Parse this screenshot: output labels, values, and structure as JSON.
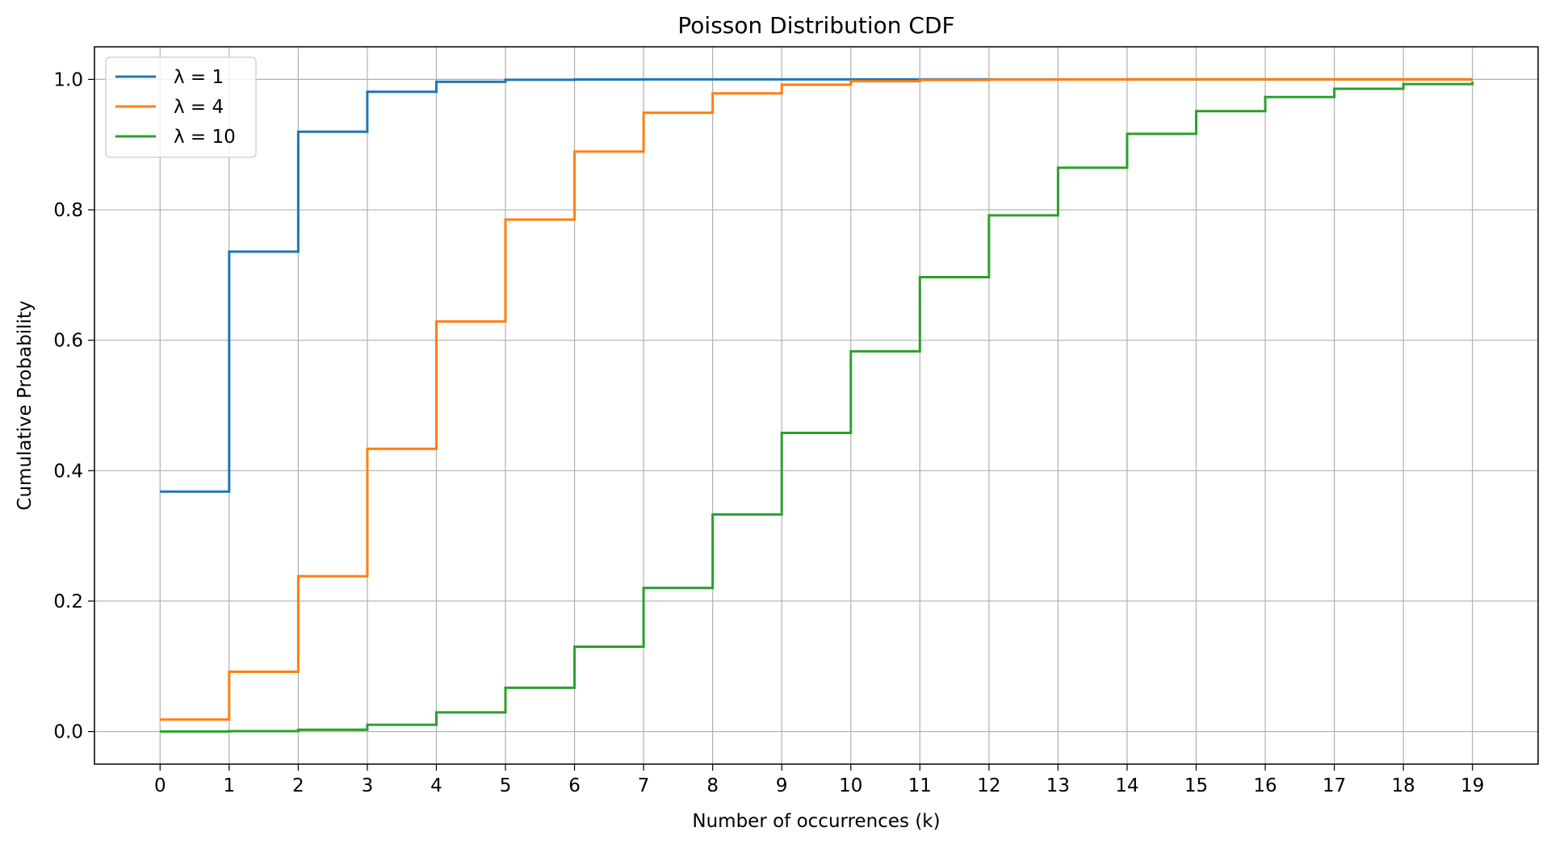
{
  "chart_data": {
    "type": "line",
    "title": "Poisson Distribution CDF",
    "xlabel": "Number of occurrences (k)",
    "ylabel": "Cumulative Probability",
    "x": [
      0,
      1,
      2,
      3,
      4,
      5,
      6,
      7,
      8,
      9,
      10,
      11,
      12,
      13,
      14,
      15,
      16,
      17,
      18,
      19
    ],
    "xticks": [
      "0",
      "1",
      "2",
      "3",
      "4",
      "5",
      "6",
      "7",
      "8",
      "9",
      "10",
      "11",
      "12",
      "13",
      "14",
      "15",
      "16",
      "17",
      "18",
      "19"
    ],
    "yticks": [
      {
        "value": 0.0,
        "label": "0.0"
      },
      {
        "value": 0.2,
        "label": "0.2"
      },
      {
        "value": 0.4,
        "label": "0.4"
      },
      {
        "value": 0.6,
        "label": "0.6"
      },
      {
        "value": 0.8,
        "label": "0.8"
      },
      {
        "value": 1.0,
        "label": "1.0"
      }
    ],
    "xlim": [
      -0.95,
      19.95
    ],
    "ylim": [
      -0.05,
      1.05
    ],
    "grid": true,
    "legend_position": "top-left",
    "step": "post",
    "series": [
      {
        "name": "λ = 1",
        "color": "#1f77b4",
        "values": [
          0.3679,
          0.7358,
          0.9197,
          0.981,
          0.9963,
          0.9994,
          0.9999,
          1.0,
          1.0,
          1.0,
          1.0,
          1.0,
          1.0,
          1.0,
          1.0,
          1.0,
          1.0,
          1.0,
          1.0,
          1.0
        ]
      },
      {
        "name": "λ = 4",
        "color": "#ff7f0e",
        "values": [
          0.0183,
          0.0916,
          0.2381,
          0.4335,
          0.6288,
          0.7851,
          0.8893,
          0.9489,
          0.9786,
          0.9919,
          0.9972,
          0.9991,
          0.9997,
          0.9999,
          1.0,
          1.0,
          1.0,
          1.0,
          1.0,
          1.0
        ]
      },
      {
        "name": "λ = 10",
        "color": "#2ca02c",
        "values": [
          0.0,
          0.0005,
          0.0028,
          0.0103,
          0.0293,
          0.0671,
          0.1301,
          0.2202,
          0.3328,
          0.4579,
          0.583,
          0.6968,
          0.7916,
          0.8645,
          0.9165,
          0.9513,
          0.973,
          0.9857,
          0.9928,
          0.9965
        ]
      }
    ]
  }
}
